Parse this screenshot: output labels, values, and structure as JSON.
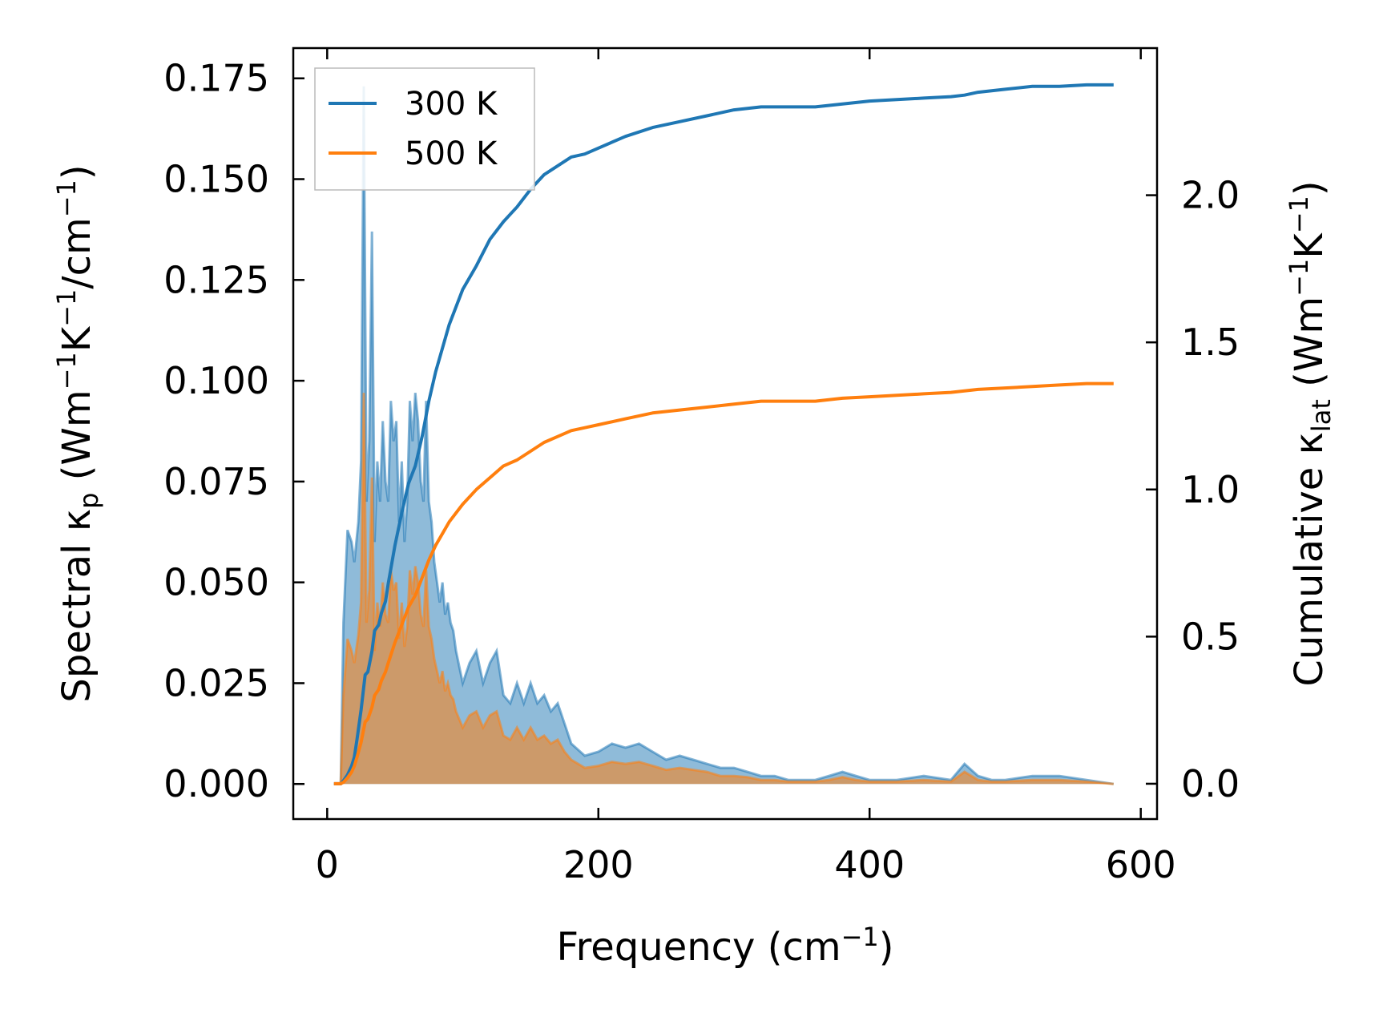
{
  "chart_data": {
    "type": "line",
    "xlabel": {
      "main": "Frequency (cm",
      "sup": "−1",
      "end": ")"
    },
    "ylabel_left": {
      "p1": "Spectral κ",
      "sub": "p",
      "p2": " (Wm",
      "sup1": "−1",
      "p3": "K",
      "sup2": "−1",
      "p4": "/cm",
      "sup3": "−1",
      "p5": ")"
    },
    "ylabel_right": {
      "p1": "Cumulative κ",
      "sub": "lat",
      "p2": " (Wm",
      "sup1": "−1",
      "p3": "K",
      "sup2": "−1",
      "p4": ")"
    },
    "xlim": [
      -25,
      612
    ],
    "ylim_left": [
      -0.0087,
      0.1825
    ],
    "ylim_right": [
      -0.12,
      2.5
    ],
    "x_ticks": [
      0,
      200,
      400,
      600
    ],
    "x_tick_labels": [
      "0",
      "200",
      "400",
      "600"
    ],
    "y_left_ticks": [
      0.0,
      0.025,
      0.05,
      0.075,
      0.1,
      0.125,
      0.15,
      0.175
    ],
    "y_left_tick_labels": [
      "0.000",
      "0.025",
      "0.050",
      "0.075",
      "0.100",
      "0.125",
      "0.150",
      "0.175"
    ],
    "y_right_ticks": [
      0.0,
      0.5,
      1.0,
      1.5,
      2.0
    ],
    "y_right_tick_labels": [
      "0.0",
      "0.5",
      "1.0",
      "1.5",
      "2.0"
    ],
    "legend": {
      "position": "upper-left",
      "entries": [
        "300 K",
        "500 K"
      ]
    },
    "colors": {
      "300 K": "#1f77b4",
      "500 K": "#ff7f0e",
      "spectral_300_fill": "#1f77b4",
      "spectral_500_fill": "#ff7f0e"
    },
    "series": [
      {
        "name": "300 K",
        "axis": "right",
        "kind": "cumulative",
        "x": [
          5,
          10,
          12,
          15,
          18,
          20,
          22,
          25,
          28,
          30,
          33,
          35,
          38,
          40,
          43,
          45,
          50,
          55,
          60,
          65,
          70,
          75,
          80,
          90,
          100,
          110,
          120,
          130,
          140,
          150,
          160,
          170,
          180,
          190,
          200,
          220,
          240,
          260,
          280,
          300,
          320,
          340,
          360,
          380,
          400,
          420,
          440,
          460,
          470,
          480,
          500,
          520,
          540,
          560,
          580
        ],
        "y": [
          0.0,
          0.0,
          0.01,
          0.03,
          0.06,
          0.09,
          0.15,
          0.25,
          0.37,
          0.38,
          0.45,
          0.52,
          0.54,
          0.58,
          0.62,
          0.68,
          0.81,
          0.92,
          1.02,
          1.08,
          1.18,
          1.3,
          1.4,
          1.56,
          1.68,
          1.76,
          1.85,
          1.91,
          1.96,
          2.02,
          2.07,
          2.1,
          2.13,
          2.14,
          2.16,
          2.2,
          2.23,
          2.25,
          2.27,
          2.29,
          2.3,
          2.3,
          2.3,
          2.31,
          2.32,
          2.325,
          2.33,
          2.335,
          2.34,
          2.35,
          2.36,
          2.37,
          2.37,
          2.375,
          2.375
        ]
      },
      {
        "name": "500 K",
        "axis": "right",
        "kind": "cumulative",
        "x": [
          5,
          10,
          12,
          15,
          18,
          20,
          22,
          25,
          28,
          30,
          33,
          35,
          38,
          40,
          43,
          45,
          50,
          55,
          60,
          65,
          70,
          75,
          80,
          90,
          100,
          110,
          120,
          130,
          140,
          150,
          160,
          170,
          180,
          190,
          200,
          220,
          240,
          260,
          280,
          300,
          320,
          340,
          360,
          380,
          400,
          420,
          440,
          460,
          470,
          480,
          500,
          520,
          540,
          560,
          580
        ],
        "y": [
          0.0,
          0.0,
          0.005,
          0.02,
          0.04,
          0.06,
          0.09,
          0.14,
          0.21,
          0.22,
          0.26,
          0.3,
          0.32,
          0.35,
          0.38,
          0.41,
          0.48,
          0.54,
          0.6,
          0.64,
          0.7,
          0.76,
          0.81,
          0.89,
          0.95,
          1.0,
          1.04,
          1.08,
          1.1,
          1.13,
          1.16,
          1.18,
          1.2,
          1.21,
          1.22,
          1.24,
          1.26,
          1.27,
          1.28,
          1.29,
          1.3,
          1.3,
          1.3,
          1.31,
          1.315,
          1.32,
          1.325,
          1.33,
          1.335,
          1.34,
          1.345,
          1.35,
          1.355,
          1.36,
          1.36
        ]
      },
      {
        "name": "300 K",
        "axis": "left",
        "kind": "spectral",
        "x": [
          5,
          10,
          12,
          15,
          18,
          20,
          23,
          25,
          27,
          29,
          31,
          33,
          35,
          37,
          39,
          41,
          43,
          45,
          47,
          49,
          51,
          53,
          55,
          57,
          59,
          61,
          63,
          65,
          67,
          69,
          71,
          73,
          75,
          77,
          79,
          81,
          83,
          85,
          87,
          89,
          91,
          93,
          95,
          100,
          105,
          110,
          115,
          120,
          125,
          130,
          135,
          140,
          145,
          150,
          155,
          160,
          165,
          170,
          175,
          180,
          190,
          200,
          210,
          220,
          230,
          240,
          250,
          260,
          270,
          280,
          290,
          300,
          310,
          320,
          330,
          340,
          350,
          360,
          370,
          380,
          390,
          400,
          420,
          440,
          460,
          470,
          480,
          490,
          500,
          520,
          540,
          560,
          580
        ],
        "y": [
          0.0,
          0.0,
          0.04,
          0.063,
          0.06,
          0.055,
          0.065,
          0.08,
          0.173,
          0.07,
          0.085,
          0.137,
          0.06,
          0.08,
          0.07,
          0.09,
          0.075,
          0.07,
          0.095,
          0.085,
          0.09,
          0.065,
          0.08,
          0.06,
          0.07,
          0.095,
          0.085,
          0.097,
          0.09,
          0.075,
          0.07,
          0.095,
          0.07,
          0.065,
          0.055,
          0.05,
          0.045,
          0.05,
          0.042,
          0.045,
          0.04,
          0.038,
          0.033,
          0.025,
          0.03,
          0.033,
          0.025,
          0.03,
          0.033,
          0.022,
          0.02,
          0.025,
          0.02,
          0.025,
          0.02,
          0.022,
          0.018,
          0.02,
          0.015,
          0.01,
          0.007,
          0.008,
          0.01,
          0.009,
          0.01,
          0.008,
          0.006,
          0.007,
          0.006,
          0.005,
          0.004,
          0.004,
          0.003,
          0.002,
          0.002,
          0.001,
          0.001,
          0.001,
          0.002,
          0.003,
          0.002,
          0.001,
          0.001,
          0.002,
          0.001,
          0.005,
          0.002,
          0.001,
          0.001,
          0.002,
          0.002,
          0.001,
          0.0
        ]
      },
      {
        "name": "500 K",
        "axis": "left",
        "kind": "spectral",
        "x": [
          5,
          10,
          12,
          15,
          18,
          20,
          23,
          25,
          27,
          29,
          31,
          33,
          35,
          37,
          39,
          41,
          43,
          45,
          47,
          49,
          51,
          53,
          55,
          57,
          59,
          61,
          63,
          65,
          67,
          69,
          71,
          73,
          75,
          77,
          79,
          81,
          83,
          85,
          87,
          89,
          91,
          93,
          95,
          100,
          105,
          110,
          115,
          120,
          125,
          130,
          135,
          140,
          145,
          150,
          155,
          160,
          165,
          170,
          175,
          180,
          190,
          200,
          210,
          220,
          230,
          240,
          250,
          260,
          270,
          280,
          290,
          300,
          310,
          320,
          330,
          340,
          350,
          360,
          370,
          380,
          390,
          400,
          420,
          440,
          460,
          470,
          480,
          490,
          500,
          520,
          540,
          560,
          580
        ],
        "y": [
          0.0,
          0.0,
          0.022,
          0.036,
          0.033,
          0.03,
          0.037,
          0.045,
          0.097,
          0.04,
          0.048,
          0.076,
          0.033,
          0.045,
          0.039,
          0.05,
          0.042,
          0.04,
          0.053,
          0.048,
          0.05,
          0.036,
          0.045,
          0.034,
          0.039,
          0.053,
          0.047,
          0.054,
          0.05,
          0.042,
          0.039,
          0.053,
          0.039,
          0.036,
          0.031,
          0.028,
          0.025,
          0.028,
          0.023,
          0.025,
          0.022,
          0.021,
          0.018,
          0.014,
          0.017,
          0.018,
          0.014,
          0.017,
          0.018,
          0.012,
          0.011,
          0.014,
          0.011,
          0.014,
          0.011,
          0.012,
          0.01,
          0.011,
          0.008,
          0.006,
          0.004,
          0.0045,
          0.0055,
          0.005,
          0.0055,
          0.0045,
          0.0035,
          0.004,
          0.0035,
          0.003,
          0.002,
          0.002,
          0.0017,
          0.001,
          0.001,
          0.0006,
          0.0006,
          0.0006,
          0.001,
          0.0017,
          0.001,
          0.0006,
          0.0006,
          0.001,
          0.0006,
          0.003,
          0.001,
          0.0006,
          0.0006,
          0.001,
          0.001,
          0.0006,
          0.0
        ]
      }
    ]
  }
}
